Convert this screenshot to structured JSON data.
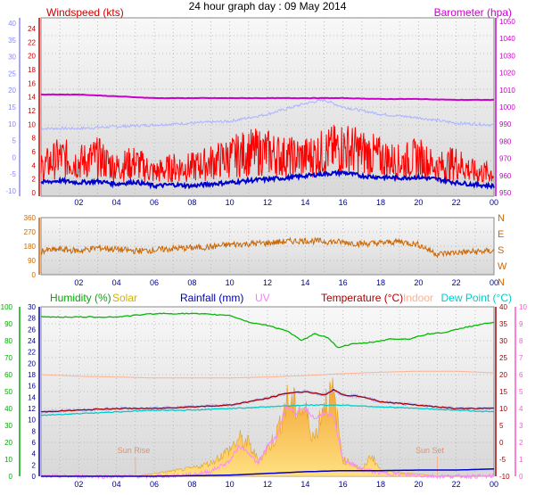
{
  "title": "24 hour graph day : 09 May 2014",
  "colors": {
    "windspeed": "#ff0000",
    "gust": "#ff0000",
    "avg_wind": "#0000cc",
    "barometer": "#cc00cc",
    "temp_blue_band": "#aab4ff",
    "direction": "#cc6600",
    "humidity": "#00bb00",
    "solar": "#f0c040",
    "rainfall": "#0000cc",
    "uv": "#ff88ff",
    "temperature": "#aa0000",
    "indoor": "#ffb090",
    "dewpoint": "#00cccc",
    "left_axis_blue": "#8888ff",
    "left_axis_green": "#00aa00",
    "right_axis_pink": "#ff55cc"
  },
  "chart_data": [
    {
      "type": "line",
      "panel": "wind",
      "labels": {
        "windspeed": "Windspeed (kts)",
        "barometer": "Barometer (hpa)"
      },
      "x_ticks": [
        "02",
        "04",
        "06",
        "08",
        "10",
        "12",
        "14",
        "16",
        "18",
        "20",
        "22",
        "00"
      ],
      "y_left_outer_ticks": [
        "-10",
        "-5",
        "0",
        "5",
        "10",
        "15",
        "20",
        "25",
        "30",
        "35",
        "40"
      ],
      "y_left_inner_ticks": [
        "0",
        "2",
        "4",
        "6",
        "8",
        "10",
        "12",
        "14",
        "16",
        "18",
        "20",
        "22",
        "24"
      ],
      "y_right_ticks": [
        "950",
        "960",
        "970",
        "980",
        "990",
        "1000",
        "1010",
        "1020",
        "1030",
        "1040",
        "1050"
      ],
      "ylim_left_inner": [
        0,
        25
      ],
      "ylim_right": [
        950,
        1050
      ],
      "series": [
        {
          "key": "barometer",
          "axis": "right",
          "x": [
            0,
            2,
            4,
            6,
            8,
            10,
            12,
            14,
            16,
            18,
            20,
            22,
            24
          ],
          "values": [
            1007,
            1007,
            1006,
            1005,
            1005,
            1005,
            1005,
            1005,
            1005,
            1004.5,
            1004.5,
            1004,
            1004
          ]
        },
        {
          "key": "avg_wind",
          "axis": "left",
          "x": [
            0,
            1,
            2,
            3,
            4,
            5,
            6,
            7,
            8,
            9,
            10,
            11,
            12,
            13,
            14,
            15,
            16,
            17,
            18,
            19,
            20,
            21,
            22,
            23,
            24
          ],
          "values": [
            1.5,
            1.8,
            1.5,
            1.7,
            1.3,
            1.6,
            1.0,
            1.2,
            1.0,
            1.3,
            1.5,
            1.8,
            2.0,
            2.2,
            2.5,
            2.8,
            3.0,
            2.5,
            2.3,
            2.2,
            2.3,
            2.0,
            1.5,
            1.2,
            1.0
          ]
        },
        {
          "key": "windspeed_gust_envelope",
          "axis": "left",
          "x": [
            0,
            1,
            2,
            3,
            4,
            5,
            6,
            7,
            8,
            9,
            10,
            11,
            12,
            13,
            14,
            15,
            16,
            17,
            18,
            19,
            20,
            21,
            22,
            23,
            24
          ],
          "values": [
            5,
            7,
            6,
            7,
            5,
            6,
            4,
            5,
            5,
            6,
            7,
            8,
            8,
            7,
            7,
            8,
            9,
            8,
            7,
            6,
            7,
            5,
            6,
            4,
            4
          ]
        },
        {
          "key": "temp_blue_band",
          "axis": "left_outer",
          "x": [
            0,
            2,
            4,
            6,
            8,
            10,
            12,
            13,
            14,
            15,
            16,
            17,
            18,
            20,
            22,
            24
          ],
          "values": [
            9,
            9,
            9.5,
            10,
            10.5,
            11,
            13,
            14.5,
            16,
            17,
            15,
            14,
            13,
            12,
            10.5,
            10
          ]
        }
      ]
    },
    {
      "type": "line",
      "panel": "direction",
      "x_ticks": [
        "02",
        "04",
        "06",
        "08",
        "10",
        "12",
        "14",
        "16",
        "18",
        "20",
        "22",
        "00"
      ],
      "y_left_ticks": [
        "0",
        "90",
        "180",
        "270",
        "360"
      ],
      "y_right_ticks": [
        "N",
        "W",
        "S",
        "E",
        "N"
      ],
      "ylim": [
        0,
        360
      ],
      "series": [
        {
          "key": "direction",
          "x": [
            0,
            1,
            2,
            3,
            4,
            5,
            6,
            7,
            8,
            9,
            10,
            11,
            12,
            13,
            14,
            15,
            16,
            17,
            18,
            19,
            20,
            21,
            22,
            23,
            24
          ],
          "values": [
            150,
            160,
            150,
            170,
            160,
            150,
            155,
            165,
            170,
            175,
            190,
            195,
            200,
            210,
            215,
            210,
            205,
            195,
            200,
            210,
            190,
            130,
            140,
            145,
            150
          ]
        }
      ]
    },
    {
      "type": "line",
      "panel": "weather",
      "labels": {
        "humidity": "Humidity (%)",
        "solar": "Solar",
        "rainfall": "Rainfall (mm)",
        "uv": "UV",
        "temperature": "Temperature (°C)",
        "indoor": "Indoor",
        "dewpoint": "Dew Point (°C)",
        "sunrise": "Sun Rise",
        "sunset": "Sun Set"
      },
      "sunrise_hour": 5,
      "sunset_hour": 21,
      "x_ticks": [
        "02",
        "04",
        "06",
        "08",
        "10",
        "12",
        "14",
        "16",
        "18",
        "20",
        "22",
        "00"
      ],
      "y_humidity_ticks": [
        "0",
        "10",
        "20",
        "30",
        "40",
        "50",
        "60",
        "70",
        "80",
        "90",
        "100"
      ],
      "y_left_inner_ticks": [
        "0",
        "2",
        "4",
        "6",
        "8",
        "10",
        "12",
        "14",
        "16",
        "18",
        "20",
        "22",
        "24",
        "26",
        "28",
        "30"
      ],
      "y_temp_ticks": [
        "-10",
        "-5",
        "0",
        "5",
        "10",
        "15",
        "20",
        "25",
        "30",
        "35",
        "40"
      ],
      "y_uv_ticks": [
        "0",
        "1",
        "2",
        "3",
        "4",
        "5",
        "6",
        "7",
        "8",
        "9",
        "10"
      ],
      "series": [
        {
          "key": "humidity",
          "axis": "humidity",
          "x": [
            0,
            2,
            4,
            6,
            8,
            10,
            11,
            12,
            13,
            13.8,
            14.5,
            15.2,
            15.7,
            16.5,
            17.5,
            18.5,
            19.5,
            20.5,
            21.5,
            22.5,
            24
          ],
          "values": [
            94,
            94,
            94,
            96,
            96,
            95,
            91,
            89,
            86,
            80,
            84,
            82,
            76,
            78,
            79,
            81,
            81,
            84,
            85,
            88,
            91
          ]
        },
        {
          "key": "indoor",
          "axis": "temp",
          "x": [
            0,
            2,
            4,
            6,
            8,
            10,
            12,
            14,
            16,
            18,
            20,
            22,
            24
          ],
          "values": [
            20,
            19.5,
            19.3,
            19,
            19,
            19,
            19.3,
            19.7,
            20.3,
            20.7,
            21,
            21,
            20.5
          ]
        },
        {
          "key": "temperature",
          "axis": "temp",
          "x": [
            0,
            2,
            4,
            6,
            8,
            10,
            11,
            12,
            13,
            14,
            15,
            15.5,
            16,
            17,
            18,
            19,
            20,
            21,
            22,
            23,
            24
          ],
          "values": [
            9,
            9.5,
            10,
            10,
            10.5,
            11,
            12,
            13,
            14.5,
            15,
            14,
            15.5,
            14,
            13.5,
            12,
            11.5,
            11,
            10.5,
            10,
            10,
            10
          ]
        },
        {
          "key": "dewpoint",
          "axis": "temp",
          "x": [
            0,
            2,
            4,
            6,
            8,
            10,
            12,
            14,
            16,
            18,
            20,
            22,
            24
          ],
          "values": [
            8,
            8.5,
            9,
            9.5,
            9.5,
            10,
            10.5,
            11,
            11,
            10.5,
            10,
            9.5,
            9
          ]
        },
        {
          "key": "uv",
          "axis": "uv",
          "x": [
            0,
            6,
            8,
            9,
            10,
            10.5,
            11,
            11.5,
            12,
            12.5,
            13,
            13.5,
            14,
            14.5,
            15,
            15.5,
            16,
            17,
            18,
            19,
            20,
            21,
            24
          ],
          "values": [
            0,
            0,
            0.1,
            0.3,
            0.9,
            1.8,
            1.4,
            0.7,
            1.8,
            2.3,
            4.2,
            3.7,
            4.0,
            3.4,
            3.7,
            3.5,
            1.0,
            0.4,
            0.2,
            0.1,
            0.05,
            0,
            0
          ]
        },
        {
          "key": "solar",
          "axis": "left_inner",
          "x": [
            0,
            5,
            6,
            7,
            8,
            9,
            10,
            10.5,
            11,
            11.5,
            12,
            12.5,
            13,
            13.5,
            14,
            14.5,
            15,
            15.5,
            16,
            16.5,
            17,
            17.5,
            18,
            19,
            20,
            21,
            24
          ],
          "values": [
            0,
            0,
            0.5,
            1,
            1.5,
            2.5,
            5,
            7,
            6,
            3,
            5,
            8,
            14,
            13,
            12,
            7,
            14,
            15,
            3,
            2.5,
            1,
            4,
            1,
            0.7,
            0.4,
            0,
            0
          ]
        },
        {
          "key": "rainfall",
          "axis": "left_inner",
          "x": [
            0,
            6,
            8,
            10,
            12,
            14,
            16,
            18,
            20,
            22,
            24
          ],
          "values": [
            0,
            0,
            0.1,
            0.2,
            0.5,
            0.8,
            1.0,
            1.0,
            1.1,
            1.1,
            1.3
          ]
        }
      ]
    }
  ]
}
